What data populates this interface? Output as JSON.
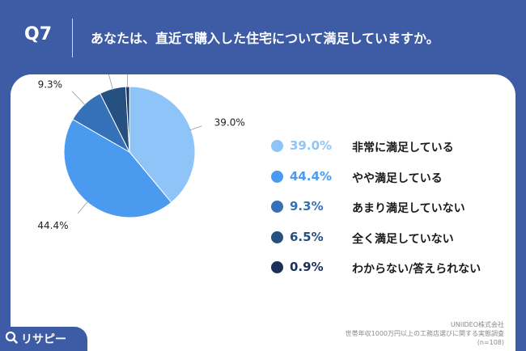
{
  "header": {
    "question_label": "Q7",
    "question_text": "あなたは、直近で購入した住宅について満足していますか。"
  },
  "chart_data": {
    "type": "pie",
    "slices": [
      {
        "label": "非常に満足している",
        "value": 39.0,
        "display": "39.0%",
        "color": "#8ec4f7"
      },
      {
        "label": "やや満足している",
        "value": 44.4,
        "display": "44.4%",
        "color": "#4a9af0"
      },
      {
        "label": "あまり満足していない",
        "value": 9.3,
        "display": "9.3%",
        "color": "#3471b8"
      },
      {
        "label": "全く満足していない",
        "value": 6.5,
        "display": "6.5%",
        "color": "#26507f"
      },
      {
        "label": "わからない/答えられない",
        "value": 0.9,
        "display": "0.9%",
        "color": "#1a2f5a"
      }
    ],
    "start_angle": "12 o'clock",
    "direction": "clockwise",
    "legend_position": "right"
  },
  "footer": {
    "company": "UNIIDEO株式会社",
    "survey": "世帯年収1000万円以上の工務店選びに関する実態調査",
    "sample": "(n=108)"
  },
  "logo": {
    "text": "リサピー",
    "icon": "search-icon"
  }
}
